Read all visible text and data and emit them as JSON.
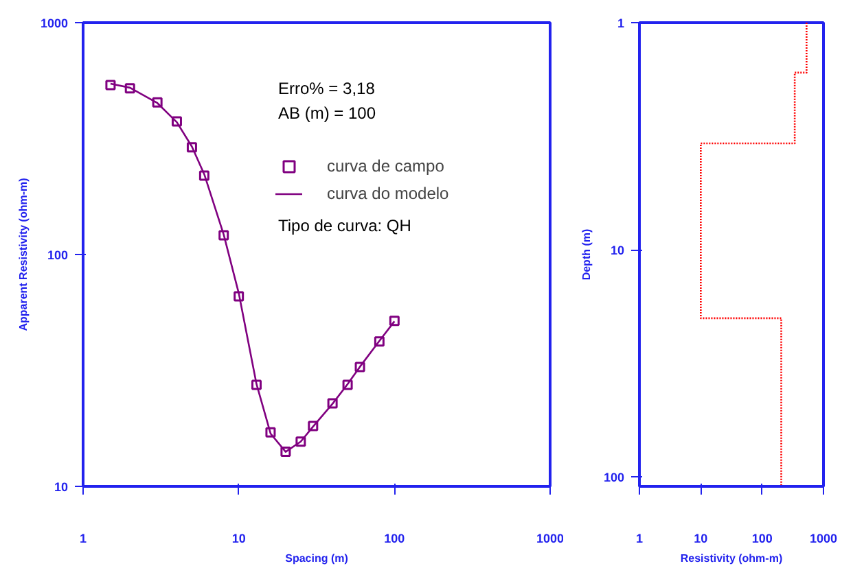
{
  "chart_data": [
    {
      "type": "scatter",
      "xlabel": "Spacing (m)",
      "ylabel": "Apparent Resistivity (ohm-m)",
      "log": "xy",
      "grid": false,
      "legend": "top right",
      "xlim": [
        1,
        1000
      ],
      "ylim": [
        10,
        1000
      ],
      "xticks": [
        1,
        10,
        100,
        1000
      ],
      "yticks": [
        10,
        100,
        1000
      ],
      "annotations": [
        "Erro% = 3,18",
        "AB (m) = 100",
        "Tipo de curva: QH"
      ],
      "series": [
        {
          "name": "curva de campo",
          "marker": "square",
          "color": "#800080",
          "x": [
            1.5,
            2,
            3,
            4,
            5,
            6,
            8,
            10,
            13,
            16,
            20,
            25,
            30,
            40,
            50,
            60,
            80,
            100
          ],
          "values": [
            538,
            521,
            453,
            375,
            290,
            219,
            121,
            66,
            27.4,
            17.1,
            14.1,
            15.6,
            18.2,
            22.8,
            27.4,
            32.7,
            42.2,
            51.7
          ]
        },
        {
          "name": "curva do modelo",
          "type": "line",
          "marker": "none",
          "line_style": "solid",
          "color": "#800080",
          "x": [
            1.5,
            2,
            3,
            4,
            5,
            6,
            8,
            10,
            13,
            16,
            20,
            25,
            30,
            40,
            50,
            60,
            80,
            100
          ],
          "values": [
            545,
            524,
            450,
            372,
            292,
            222,
            122,
            68,
            27.6,
            16.9,
            14.1,
            15.6,
            18.1,
            22.7,
            27.6,
            32.8,
            42.4,
            51.5
          ]
        }
      ]
    },
    {
      "type": "line",
      "xlabel": "Resistivity (ohm-m)",
      "ylabel": "Depth (m)",
      "log": "xy",
      "grid": false,
      "legend": false,
      "xlim": [
        1,
        1000
      ],
      "ylim": [
        110,
        1
      ],
      "xticks": [
        1,
        10,
        100,
        1000
      ],
      "yticks": [
        1,
        10,
        100
      ],
      "series": [
        {
          "marker": "none",
          "line_style": "dotted",
          "color": "#ff0000",
          "x": [
            530,
            530,
            340,
            340,
            10,
            10,
            205,
            205
          ],
          "values": [
            1,
            1.66,
            1.66,
            3.4,
            3.4,
            20,
            20,
            110
          ]
        }
      ]
    }
  ]
}
